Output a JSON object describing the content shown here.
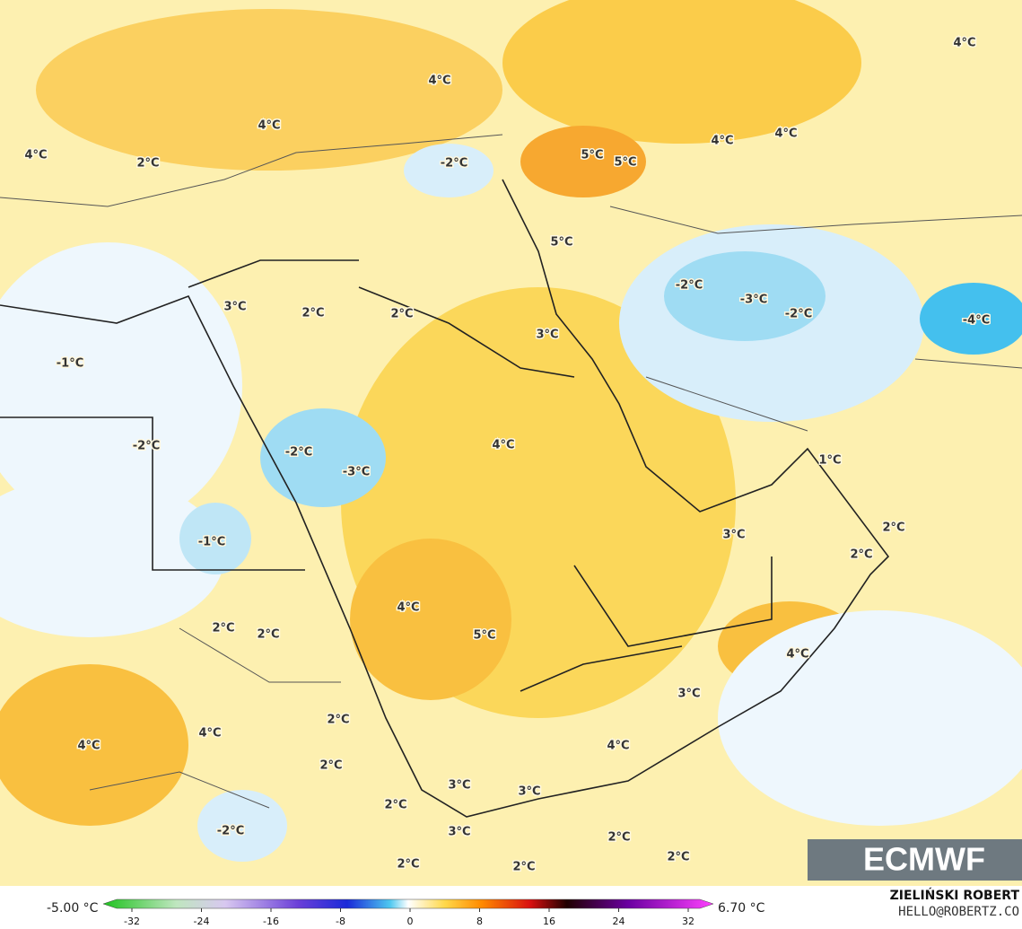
{
  "map_labels": [
    "4°C",
    "4°C",
    "4°C",
    "4°C",
    "2°C",
    "-2°C",
    "5°C",
    "5°C",
    "4°C",
    "4°C",
    "5°C",
    "-2°C",
    "-3°C",
    "-2°C",
    "-4°C",
    "3°C",
    "2°C",
    "2°C",
    "3°C",
    "-1°C",
    "-2°C",
    "4°C",
    "-2°C",
    "-3°C",
    "1°C",
    "2°C",
    "3°C",
    "2°C",
    "-1°C",
    "4°C",
    "2°C",
    "2°C",
    "5°C",
    "4°C",
    "3°C",
    "2°C",
    "4°C",
    "4°C",
    "4°C",
    "2°C",
    "3°C",
    "3°C",
    "2°C",
    "-2°C",
    "3°C",
    "2°C",
    "2°C",
    "2°C",
    "2°C"
  ],
  "colorbar": {
    "min_label": "-5.00 °C",
    "max_label": "6.70 °C",
    "ticks": [
      -32,
      -24,
      -16,
      -8,
      0,
      8,
      16,
      24,
      32
    ]
  },
  "logo": "ECMWF",
  "credit": {
    "name": "ZIELIŃSKI ROBERT",
    "contact": "HELLO@ROBERTZ.CO"
  }
}
